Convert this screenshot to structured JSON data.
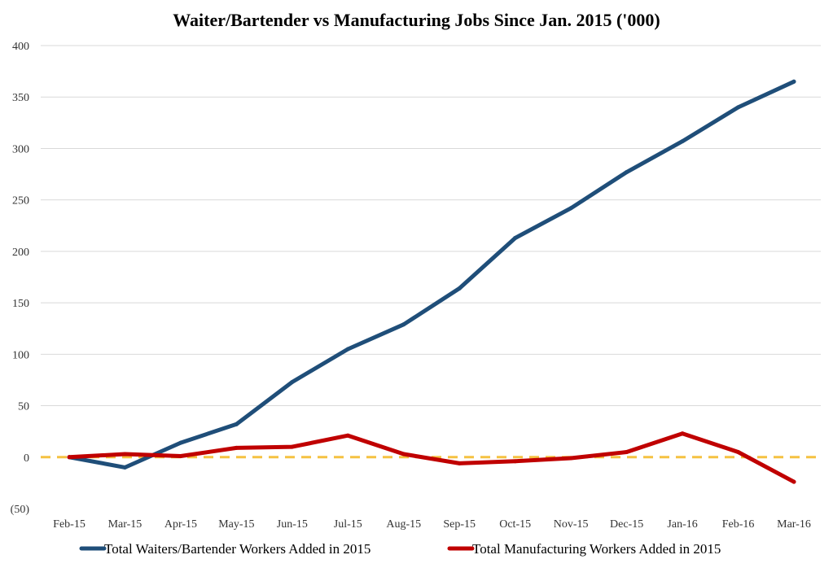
{
  "chart_data": {
    "type": "line",
    "title": "Waiter/Bartender vs Manufacturing Jobs Since Jan. 2015 ('000)",
    "xlabel": "",
    "ylabel": "",
    "ylim": [
      -50,
      400
    ],
    "y_ticks": [
      {
        "value": 400,
        "label": "400"
      },
      {
        "value": 350,
        "label": "350"
      },
      {
        "value": 300,
        "label": "300"
      },
      {
        "value": 250,
        "label": "250"
      },
      {
        "value": 200,
        "label": "200"
      },
      {
        "value": 150,
        "label": "150"
      },
      {
        "value": 100,
        "label": "100"
      },
      {
        "value": 50,
        "label": "50"
      },
      {
        "value": 0,
        "label": "0"
      },
      {
        "value": -50,
        "label": "(50)",
        "color": "#c00000"
      }
    ],
    "categories": [
      "Feb-15",
      "Mar-15",
      "Apr-15",
      "May-15",
      "Jun-15",
      "Jul-15",
      "Aug-15",
      "Sep-15",
      "Oct-15",
      "Nov-15",
      "Dec-15",
      "Jan-16",
      "Feb-16",
      "Mar-16"
    ],
    "series": [
      {
        "name": "Total Waiters/Bartender Workers Added in 2015",
        "color": "#1f4e79",
        "values": [
          0,
          -10,
          14,
          32,
          73,
          105,
          129,
          164,
          213,
          242,
          277,
          307,
          340,
          365
        ]
      },
      {
        "name": "Total Manufacturing Workers Added in 2015",
        "color": "#c00000",
        "values": [
          0,
          3,
          1,
          9,
          10,
          21,
          3,
          -6,
          -4,
          -1,
          5,
          23,
          5,
          -24
        ]
      }
    ],
    "zero_line_color": "#f5c242",
    "grid": true,
    "legend_position": "bottom"
  }
}
